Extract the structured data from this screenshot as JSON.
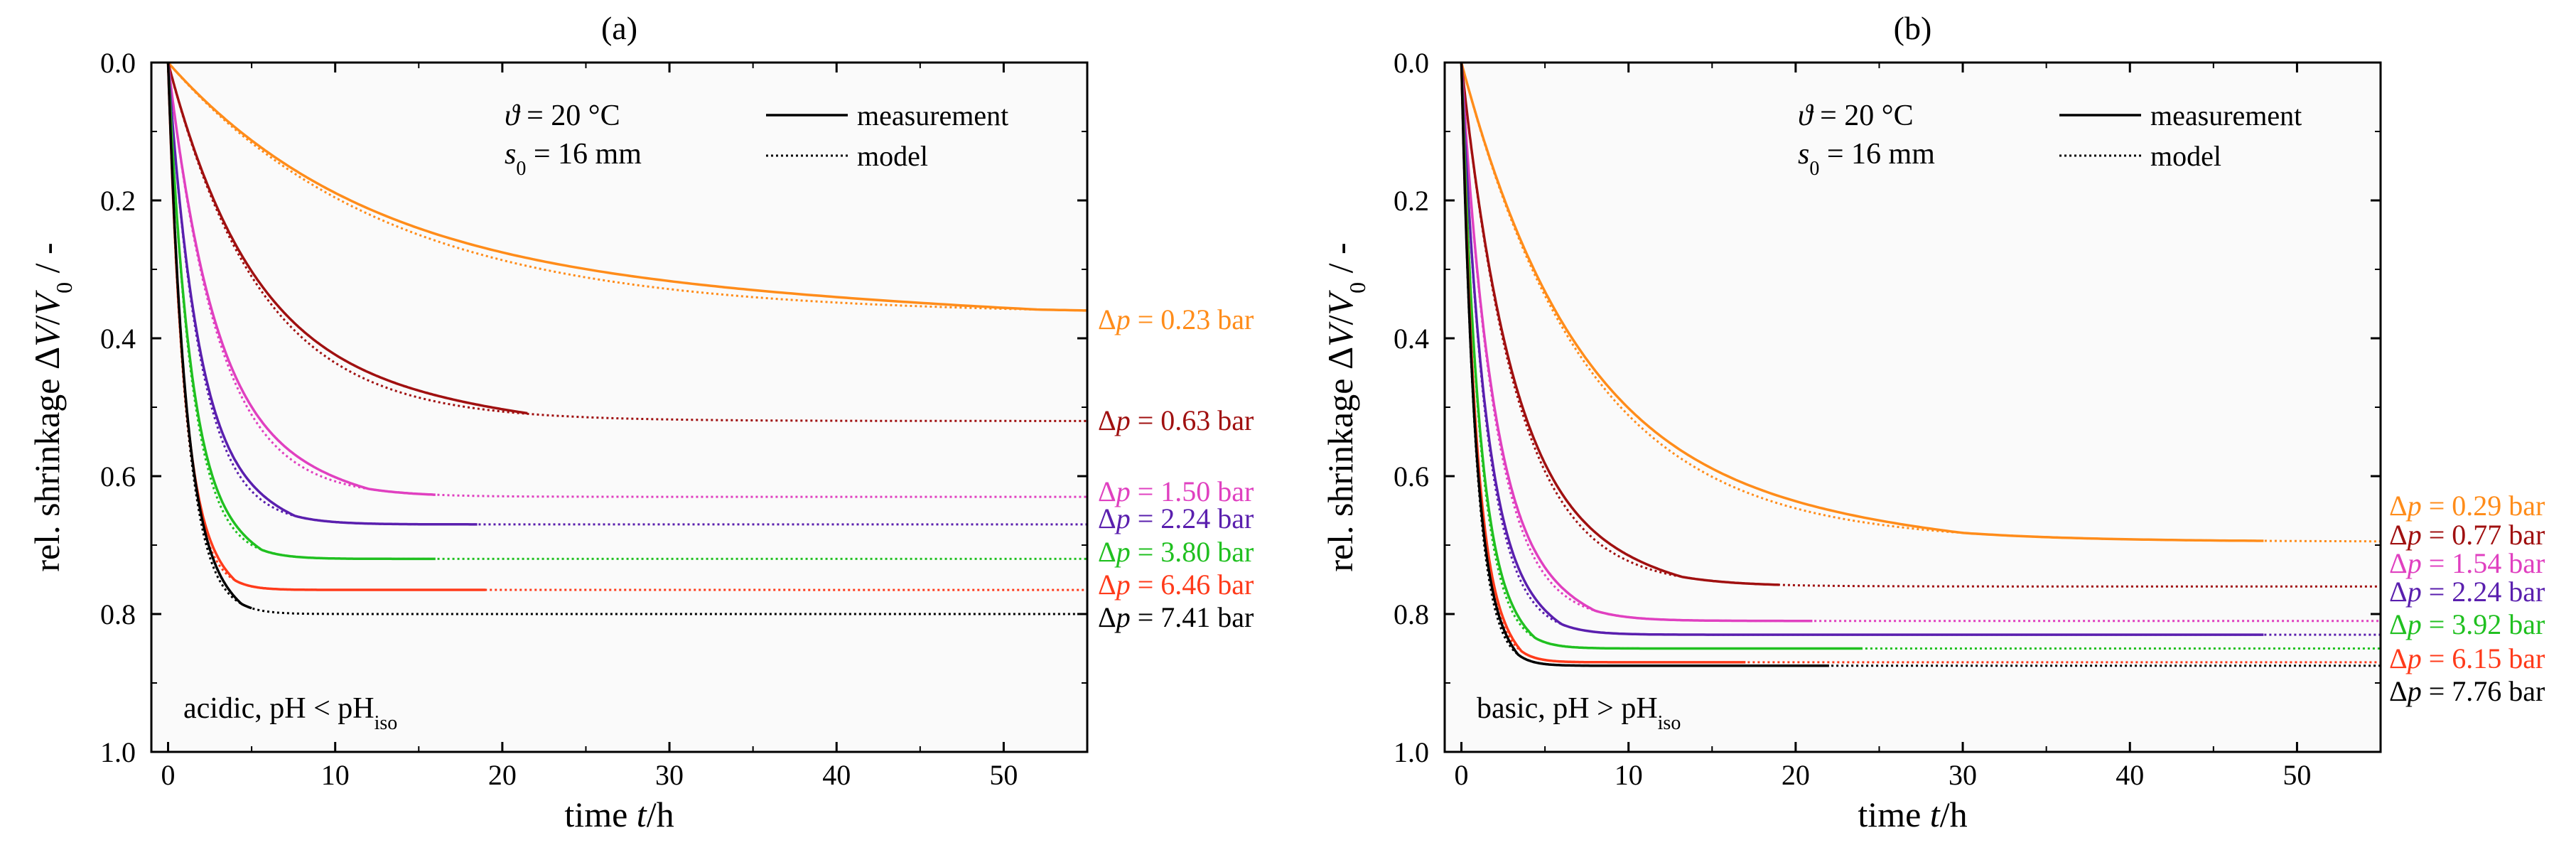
{
  "chart_data": [
    {
      "type": "line",
      "title": "(a)",
      "xlabel": {
        "prefix": "time ",
        "var": "t",
        "suffix": "/h"
      },
      "ylabel": {
        "prefix": "rel. shrinkage ",
        "delta": "Δ",
        "var1": "V",
        "slash": "/",
        "var2": "V",
        "sub": "0",
        "suffix": " / -"
      },
      "xlim": [
        -1,
        55
      ],
      "ylim": [
        0,
        1
      ],
      "y_inverted": true,
      "xticks": [
        0,
        10,
        20,
        30,
        40,
        50
      ],
      "yticks": [
        0.0,
        0.2,
        0.4,
        0.6,
        0.8,
        1.0
      ],
      "ytick_labels": [
        "0.0",
        "0.2",
        "0.4",
        "0.6",
        "0.8",
        "1.0"
      ],
      "conditions": {
        "theta_sym": "ϑ",
        "theta_val": " = 20 °C",
        "s_sym": "s",
        "s_sub": "0",
        "s_val": " = 16 mm"
      },
      "legend": {
        "measurement": "measurement",
        "model": "model",
        "position": "top-right"
      },
      "annotation": {
        "text": "acidic, pH < pH",
        "sub": "iso"
      },
      "series": [
        {
          "label": "Δp = 0.23 bar",
          "delta": "Δ",
          "var": "p",
          "value_text": " = 0.23 bar",
          "color": "#FF8C1A",
          "v_end": 0.365,
          "tau": 13.0,
          "meas_end": 55,
          "model_end": 55
        },
        {
          "label": "Δp = 0.63 bar",
          "delta": "Δ",
          "var": "p",
          "value_text": " = 0.63 bar",
          "color": "#A01010",
          "v_end": 0.52,
          "tau": 5.5,
          "meas_end": 21.5,
          "model_end": 55
        },
        {
          "label": "Δp = 1.50 bar",
          "delta": "Δ",
          "var": "p",
          "value_text": " = 1.50 bar",
          "color": "#E040C0",
          "v_end": 0.63,
          "tau": 3.0,
          "meas_end": 16,
          "model_end": 55
        },
        {
          "label": "Δp = 2.24 bar",
          "delta": "Δ",
          "var": "p",
          "value_text": " = 2.24 bar",
          "color": "#5A1FAE",
          "v_end": 0.67,
          "tau": 1.9,
          "meas_end": 18.5,
          "model_end": 55
        },
        {
          "label": "Δp = 3.80 bar",
          "delta": "Δ",
          "var": "p",
          "value_text": " = 3.80 bar",
          "color": "#20C020",
          "v_end": 0.72,
          "tau": 1.4,
          "meas_end": 16,
          "model_end": 55
        },
        {
          "label": "Δp = 6.46 bar",
          "delta": "Δ",
          "var": "p",
          "value_text": " = 6.46 bar",
          "color": "#FF3A1A",
          "v_end": 0.765,
          "tau": 1.0,
          "meas_end": 19,
          "model_end": 55
        },
        {
          "label": "Δp = 7.41 bar",
          "delta": "Δ",
          "var": "p",
          "value_text": " = 7.41 bar",
          "color": "#000000",
          "v_end": 0.8,
          "tau": 1.1,
          "meas_end": 5,
          "model_end": 55
        }
      ]
    },
    {
      "type": "line",
      "title": "(b)",
      "xlabel": {
        "prefix": "time ",
        "var": "t",
        "suffix": "/h"
      },
      "ylabel": {
        "prefix": "rel. shrinkage ",
        "delta": "Δ",
        "var1": "V",
        "slash": "/",
        "var2": "V",
        "sub": "0",
        "suffix": " / -"
      },
      "xlim": [
        -1,
        55
      ],
      "ylim": [
        0,
        1
      ],
      "y_inverted": true,
      "xticks": [
        0,
        10,
        20,
        30,
        40,
        50
      ],
      "yticks": [
        0.0,
        0.2,
        0.4,
        0.6,
        0.8,
        1.0
      ],
      "ytick_labels": [
        "0.0",
        "0.2",
        "0.4",
        "0.6",
        "0.8",
        "1.0"
      ],
      "conditions": {
        "theta_sym": "ϑ",
        "theta_val": " = 20 °C",
        "s_sym": "s",
        "s_sub": "0",
        "s_val": " = 16 mm"
      },
      "legend": {
        "measurement": "measurement",
        "model": "model",
        "position": "top-right"
      },
      "annotation": {
        "text": "basic, pH > pH",
        "sub": "iso"
      },
      "series": [
        {
          "label": "Δp = 0.29 bar",
          "delta": "Δ",
          "var": "p",
          "value_text": " = 0.29 bar",
          "color": "#FF8C1A",
          "v_end": 0.695,
          "tau": 7.5,
          "meas_end": 48,
          "model_end": 55
        },
        {
          "label": "Δp = 0.77 bar",
          "delta": "Δ",
          "var": "p",
          "value_text": " = 0.77 bar",
          "color": "#A01010",
          "v_end": 0.76,
          "tau": 3.3,
          "meas_end": 19,
          "model_end": 55
        },
        {
          "label": "Δp = 1.54 bar",
          "delta": "Δ",
          "var": "p",
          "value_text": " = 1.54 bar",
          "color": "#E040C0",
          "v_end": 0.81,
          "tau": 2.0,
          "meas_end": 21,
          "model_end": 55
        },
        {
          "label": "Δp = 2.24 bar",
          "delta": "Δ",
          "var": "p",
          "value_text": " = 2.24 bar",
          "color": "#5A1FAE",
          "v_end": 0.83,
          "tau": 1.5,
          "meas_end": 48,
          "model_end": 55
        },
        {
          "label": "Δp = 3.92 bar",
          "delta": "Δ",
          "var": "p",
          "value_text": " = 3.92 bar",
          "color": "#20C020",
          "v_end": 0.85,
          "tau": 1.1,
          "meas_end": 24,
          "model_end": 55
        },
        {
          "label": "Δp = 6.15 bar",
          "delta": "Δ",
          "var": "p",
          "value_text": " = 6.15 bar",
          "color": "#FF3A1A",
          "v_end": 0.87,
          "tau": 0.9,
          "meas_end": 17,
          "model_end": 55
        },
        {
          "label": "Δp = 7.76 bar",
          "delta": "Δ",
          "var": "p",
          "value_text": " = 7.76 bar",
          "color": "#000000",
          "v_end": 0.875,
          "tau": 0.85,
          "meas_end": 22,
          "model_end": 55
        }
      ]
    }
  ]
}
